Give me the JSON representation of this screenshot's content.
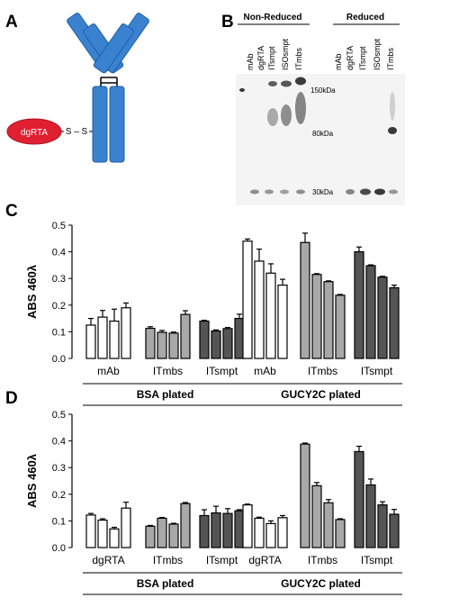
{
  "panels": {
    "a": "A",
    "b": "B",
    "c": "C",
    "d": "D"
  },
  "antibody": {
    "toxin_label": "dgRTA",
    "linker_label": "S – S",
    "colors": {
      "chain": "#3a82d0",
      "chain_edge": "#1f5fa8",
      "toxin": "#e02030"
    }
  },
  "blot": {
    "group_nonreduced": "Non-Reduced",
    "group_reduced": "Reduced",
    "lanes_nonreduced": [
      "mAb",
      "dgRTA",
      "ITsmpt",
      "ISOsmpt",
      "ITmbs"
    ],
    "lanes_reduced": [
      "mAb",
      "dgRTA",
      "ITsmpt",
      "ISOsmpt",
      "ITmbs"
    ],
    "markers": [
      "150kDa",
      "80kDa",
      "30kDa"
    ]
  },
  "chart_data": [
    {
      "type": "bar",
      "panel": "C",
      "ylabel": "ABS 460λ",
      "ylim": [
        0,
        0.5
      ],
      "yticks": [
        "0.0",
        "0.1",
        "0.2",
        "0.3",
        "0.4",
        "0.5"
      ],
      "error_bars": true,
      "groups": [
        {
          "label": "BSA plated",
          "categories": [
            {
              "label": "mAb",
              "fill": "#ffffff",
              "values": [
                0.125,
                0.155,
                0.14,
                0.19
              ],
              "errors": [
                0.025,
                0.025,
                0.045,
                0.018
              ]
            },
            {
              "label": "ITmbs",
              "fill": "#a8a8a8",
              "values": [
                0.113,
                0.098,
                0.095,
                0.165
              ],
              "errors": [
                0.006,
                0.007,
                0.004,
                0.014
              ]
            },
            {
              "label": "ITsmpt",
              "fill": "#555555",
              "values": [
                0.14,
                0.103,
                0.112,
                0.15
              ],
              "errors": [
                0.003,
                0.004,
                0.004,
                0.016
              ]
            }
          ]
        },
        {
          "label": "GUCY2C plated",
          "categories": [
            {
              "label": "mAb",
              "fill": "#ffffff",
              "values": [
                0.44,
                0.365,
                0.32,
                0.275
              ],
              "errors": [
                0.008,
                0.045,
                0.035,
                0.022
              ]
            },
            {
              "label": "ITmbs",
              "fill": "#a8a8a8",
              "values": [
                0.435,
                0.315,
                0.288,
                0.237
              ],
              "errors": [
                0.035,
                0.003,
                0.003,
                0.003
              ]
            },
            {
              "label": "ITsmpt",
              "fill": "#555555",
              "values": [
                0.4,
                0.348,
                0.305,
                0.265
              ],
              "errors": [
                0.018,
                0.003,
                0.003,
                0.01
              ]
            }
          ]
        }
      ]
    },
    {
      "type": "bar",
      "panel": "D",
      "ylabel": "ABS 460λ",
      "ylim": [
        0,
        0.5
      ],
      "yticks": [
        "0.0",
        "0.1",
        "0.2",
        "0.3",
        "0.4",
        "0.5"
      ],
      "error_bars": true,
      "groups": [
        {
          "label": "BSA plated",
          "categories": [
            {
              "label": "dgRTA",
              "fill": "#ffffff",
              "values": [
                0.122,
                0.103,
                0.07,
                0.148
              ],
              "errors": [
                0.006,
                0.005,
                0.006,
                0.022
              ]
            },
            {
              "label": "ITmbs",
              "fill": "#a8a8a8",
              "values": [
                0.08,
                0.11,
                0.088,
                0.165
              ],
              "errors": [
                0.003,
                0.003,
                0.003,
                0.004
              ]
            },
            {
              "label": "ITsmpt",
              "fill": "#555555",
              "values": [
                0.12,
                0.13,
                0.128,
                0.138
              ],
              "errors": [
                0.022,
                0.025,
                0.018,
                0.004
              ]
            }
          ]
        },
        {
          "label": "GUCY2C plated",
          "categories": [
            {
              "label": "dgRTA",
              "fill": "#ffffff",
              "values": [
                0.16,
                0.11,
                0.09,
                0.112
              ],
              "errors": [
                0.003,
                0.004,
                0.01,
                0.008
              ]
            },
            {
              "label": "ITmbs",
              "fill": "#a8a8a8",
              "values": [
                0.388,
                0.232,
                0.168,
                0.105
              ],
              "errors": [
                0.004,
                0.012,
                0.012,
                0.003
              ]
            },
            {
              "label": "ITsmpt",
              "fill": "#555555",
              "values": [
                0.36,
                0.235,
                0.16,
                0.125
              ],
              "errors": [
                0.02,
                0.022,
                0.012,
                0.018
              ]
            }
          ]
        }
      ]
    }
  ]
}
